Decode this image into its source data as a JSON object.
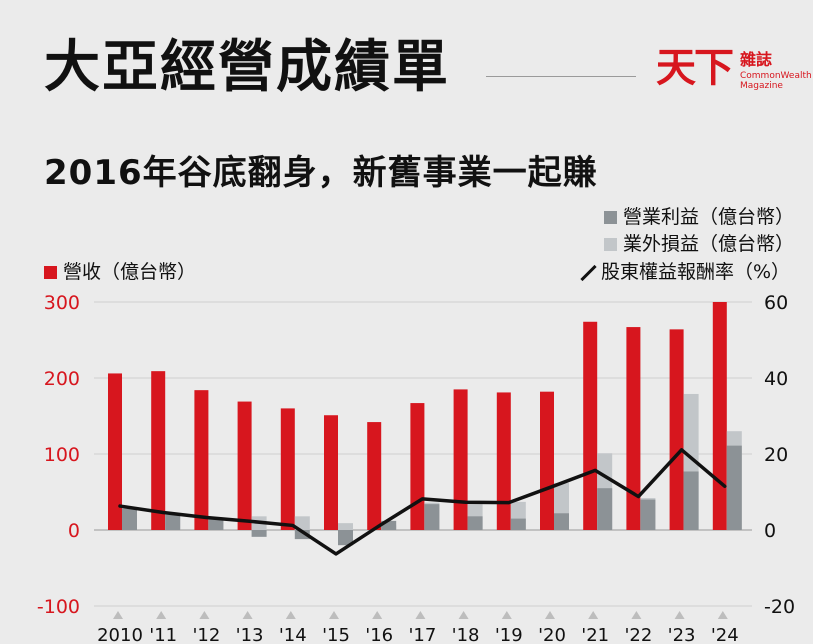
{
  "header": {
    "title": "大亞經營成績單",
    "subtitle": "2016年谷底翻身，新舊事業一起賺",
    "logo_main": "天下",
    "logo_sub": "雜誌",
    "logo_en_1": "CommonWealth",
    "logo_en_2": "Magazine"
  },
  "colors": {
    "revenue": "#d7161e",
    "operating_profit": "#8c9296",
    "non_operating": "#c2c6c9",
    "roe": "#111111",
    "left_axis": "#d7161e",
    "right_axis": "#111111"
  },
  "chart_data": {
    "type": "bar",
    "categories": [
      "2010",
      "'11",
      "'12",
      "'13",
      "'14",
      "'15",
      "'16",
      "'17",
      "'18",
      "'19",
      "'20",
      "'21",
      "'22",
      "'23",
      "'24"
    ],
    "left_axis": {
      "ylim": [
        -100,
        300
      ],
      "ticks": [
        300,
        200,
        100,
        0,
        -100
      ]
    },
    "right_axis": {
      "ylim": [
        -20,
        60
      ],
      "ticks": [
        60,
        40,
        20,
        0,
        -20
      ]
    },
    "series": [
      {
        "name": "營收（億台幣）",
        "type": "bar",
        "axis": "left",
        "values": [
          206,
          209,
          184,
          169,
          160,
          151,
          142,
          167,
          185,
          181,
          182,
          274,
          267,
          264,
          300
        ]
      },
      {
        "name": "營業利益（億台幣）",
        "type": "bar",
        "axis": "left",
        "values": [
          28,
          20,
          15,
          -9,
          -12,
          -20,
          12,
          34,
          18,
          15,
          22,
          55,
          40,
          77,
          111
        ]
      },
      {
        "name": "業外損益（億台幣）",
        "type": "bar",
        "axis": "left",
        "values": [
          30,
          22,
          16,
          18,
          18,
          9,
          6,
          36,
          34,
          37,
          62,
          101,
          42,
          179,
          130
        ]
      },
      {
        "name": "股東權益報酬率（%）",
        "type": "line",
        "axis": "right",
        "values": [
          6.3,
          4.6,
          3.3,
          2.3,
          1.2,
          -6.3,
          1.1,
          8.2,
          7.3,
          7.2,
          11.4,
          15.7,
          8.8,
          21.1,
          11.5
        ]
      }
    ]
  }
}
